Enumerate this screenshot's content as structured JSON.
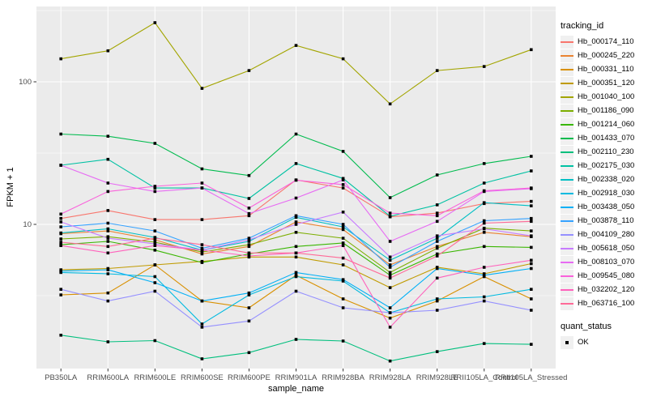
{
  "chart_data": {
    "type": "line",
    "title": "",
    "xlabel": "sample_name",
    "ylabel": "FPKM + 1",
    "y_scale": "log10",
    "y_ticks": [
      100,
      10
    ],
    "y_minor_ticks": [
      316.2,
      31.62,
      3.162
    ],
    "panel_bg": "#EBEBEB",
    "grid_color": "#FFFFFF",
    "point_color": "#000000",
    "tick_text_color": "#4d4d4d",
    "categories": [
      "PB350LA",
      "RRIM600LA",
      "RRIM600LE",
      "RRIM600SE",
      "RRIM600PE",
      "RRIM901LA",
      "RRIM928BA",
      "RRIM928LA",
      "RRIM928LE",
      "RRII105LA_Control",
      "RRII105LA_Stressed"
    ],
    "legend": {
      "color_title": "tracking_id",
      "shape_title": "quant_status",
      "shape_items": [
        "OK"
      ]
    },
    "series": [
      {
        "name": "Hb_000174_110",
        "color": "#F8766D",
        "values": [
          11,
          12.5,
          10.8,
          10.8,
          11.5,
          20.5,
          18,
          11.3,
          12,
          14,
          14.5
        ]
      },
      {
        "name": "Hb_000245_220",
        "color": "#EA8331",
        "values": [
          8.6,
          9,
          7.8,
          6.2,
          7,
          10.4,
          9.2,
          5.2,
          7,
          8.8,
          8.2
        ]
      },
      {
        "name": "Hb_000331_110",
        "color": "#D89000",
        "values": [
          3.2,
          3.3,
          5.2,
          2.9,
          2.6,
          4.4,
          3,
          2.2,
          2.9,
          4.3,
          3
        ]
      },
      {
        "name": "Hb_000351_120",
        "color": "#C09B00",
        "values": [
          4.8,
          4.9,
          5.2,
          5.5,
          5.9,
          5.9,
          5.2,
          3.6,
          5,
          4.5,
          5.3
        ]
      },
      {
        "name": "Hb_001040_100",
        "color": "#A3A500",
        "values": [
          145,
          165,
          260,
          90,
          120,
          180,
          145,
          70,
          120,
          128,
          168
        ]
      },
      {
        "name": "Hb_001186_090",
        "color": "#7CAE00",
        "values": [
          7.9,
          8.2,
          7.5,
          6.4,
          7.2,
          8.8,
          8,
          4.6,
          6.8,
          9.4,
          9
        ]
      },
      {
        "name": "Hb_001214_060",
        "color": "#39B600",
        "values": [
          7.2,
          7.6,
          6.6,
          5.4,
          6.2,
          7,
          7.4,
          4.4,
          6.2,
          7,
          6.9
        ]
      },
      {
        "name": "Hb_001433_070",
        "color": "#00BB4E",
        "values": [
          43,
          41.5,
          37,
          24.5,
          22,
          43,
          32.5,
          15.4,
          22.2,
          26.7,
          30
        ]
      },
      {
        "name": "Hb_002110_230",
        "color": "#00BF7D",
        "values": [
          1.67,
          1.5,
          1.53,
          1.14,
          1.26,
          1.56,
          1.52,
          1.1,
          1.28,
          1.46,
          1.44
        ]
      },
      {
        "name": "Hb_002175_030",
        "color": "#00C1A3",
        "values": [
          26,
          28.6,
          18,
          18,
          15.2,
          26.7,
          21,
          11.4,
          13.7,
          19.5,
          23.7
        ]
      },
      {
        "name": "Hb_002338_020",
        "color": "#00BFC4",
        "values": [
          8.7,
          9.3,
          8.1,
          6.6,
          7.6,
          11.2,
          9.6,
          5.6,
          8,
          14.2,
          13.5
        ]
      },
      {
        "name": "Hb_002918_030",
        "color": "#00BAE0",
        "values": [
          4.6,
          4.5,
          4.3,
          2,
          3.2,
          4.3,
          4,
          2.4,
          3,
          3.1,
          3.5
        ]
      },
      {
        "name": "Hb_003438_050",
        "color": "#00B0F6",
        "values": [
          4.7,
          4.8,
          3.9,
          2.9,
          3.3,
          4.6,
          4.1,
          2.6,
          4.9,
          4.4,
          4.9
        ]
      },
      {
        "name": "Hb_003878_110",
        "color": "#35A2FF",
        "values": [
          9.6,
          10.2,
          9,
          6.8,
          8,
          11.5,
          10,
          5,
          7.6,
          10.6,
          11
        ]
      },
      {
        "name": "Hb_004109_280",
        "color": "#9590FF",
        "values": [
          3.5,
          2.9,
          3.4,
          1.9,
          2.1,
          3.4,
          2.6,
          2.4,
          2.5,
          2.9,
          2.5
        ]
      },
      {
        "name": "Hb_005618_050",
        "color": "#C77CFF",
        "values": [
          10.4,
          8,
          7.3,
          6.6,
          7.8,
          10,
          12.2,
          5.9,
          8.3,
          9.3,
          8.3
        ]
      },
      {
        "name": "Hb_008103_070",
        "color": "#E76BF3",
        "values": [
          26,
          19.5,
          17,
          18,
          11.9,
          15.3,
          20.5,
          7.6,
          10.5,
          17,
          17.8
        ]
      },
      {
        "name": "Hb_009545_080",
        "color": "#FA62DB",
        "values": [
          11.8,
          17,
          18.5,
          19.5,
          13,
          20.4,
          19,
          12,
          11.5,
          17.2,
          18
        ]
      },
      {
        "name": "Hb_032202_120",
        "color": "#FF62BC",
        "values": [
          7.1,
          6.3,
          7.1,
          6.6,
          6,
          6.3,
          7.1,
          1.9,
          4.2,
          5,
          5.6
        ]
      },
      {
        "name": "Hb_063716_100",
        "color": "#FF6A98",
        "values": [
          7.5,
          7,
          8,
          7.2,
          6.3,
          6.3,
          5.8,
          4.2,
          6,
          10.2,
          10.5
        ]
      }
    ]
  }
}
